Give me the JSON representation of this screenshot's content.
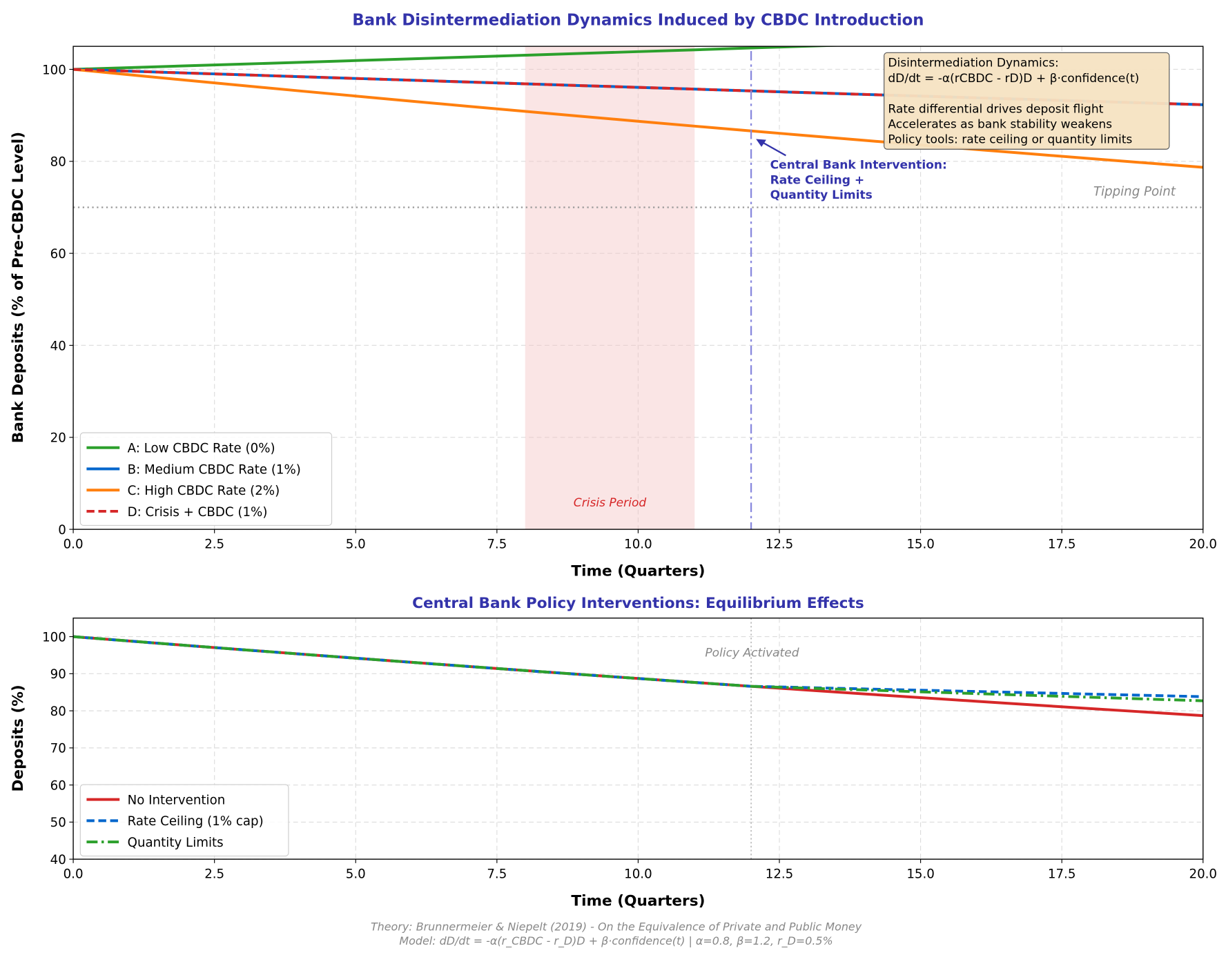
{
  "title": "Bank Disintermediation Dynamics Induced by CBDC Introduction",
  "colors": {
    "title": "#3333aa",
    "A": "#2ca02c",
    "B": "#0066cc",
    "C": "#ff7f0e",
    "D": "#d62728",
    "crisis": "#f5c6c6",
    "box": "#f5e3c2"
  },
  "chart_data": [
    {
      "type": "line",
      "xlabel": "Time (Quarters)",
      "ylabel": "Bank Deposits (% of Pre-CBDC Level)",
      "xlim": [
        0,
        20
      ],
      "ylim": [
        0,
        105
      ],
      "xticks": [
        "0.0",
        "2.5",
        "5.0",
        "7.5",
        "10.0",
        "12.5",
        "15.0",
        "17.5",
        "20.0"
      ],
      "yticks": [
        "0",
        "20",
        "40",
        "60",
        "80",
        "100"
      ],
      "grid": true,
      "legend_placement": "lower-left",
      "x": [
        0,
        1,
        2,
        3,
        4,
        5,
        6,
        7,
        8,
        9,
        10,
        11,
        12,
        13,
        14,
        15,
        16,
        17,
        18,
        19,
        20
      ],
      "series": [
        {
          "name": "A: Low CBDC Rate (0%)",
          "color": "#2ca02c",
          "style": "solid",
          "values": [
            100,
            100.38,
            100.76,
            101.14,
            101.52,
            101.91,
            102.29,
            102.68,
            103.07,
            103.46,
            103.85,
            104.24,
            104.64,
            105.04,
            105.43,
            105.83,
            106.23,
            106.64,
            107.04,
            107.45,
            107.85
          ]
        },
        {
          "name": "B: Medium CBDC Rate (1%)",
          "color": "#0066cc",
          "style": "solid",
          "values": [
            100,
            99.6,
            99.2,
            98.81,
            98.41,
            98.02,
            97.63,
            97.24,
            96.85,
            96.46,
            96.08,
            95.7,
            95.31,
            94.93,
            94.55,
            94.18,
            93.8,
            93.43,
            93.05,
            92.68,
            92.31
          ]
        },
        {
          "name": "C: High CBDC Rate (2%)",
          "color": "#ff7f0e",
          "style": "solid",
          "values": [
            100,
            98.81,
            97.63,
            96.47,
            95.32,
            94.19,
            93.06,
            91.96,
            90.86,
            89.78,
            88.71,
            87.65,
            86.61,
            85.58,
            84.56,
            83.55,
            82.56,
            81.58,
            80.61,
            79.65,
            78.7
          ]
        },
        {
          "name": "D: Crisis + CBDC (1%)",
          "color": "#d62728",
          "style": "dashed",
          "values": [
            100,
            99.6,
            99.2,
            98.81,
            98.41,
            98.02,
            97.63,
            97.24,
            96.85,
            96.46,
            96.08,
            95.7,
            95.31,
            94.93,
            94.55,
            94.18,
            93.8,
            93.43,
            93.05,
            92.68,
            92.31
          ]
        }
      ],
      "tipping_point": {
        "value": 70,
        "label": "Tipping Point"
      },
      "crisis_period": {
        "start": 8,
        "end": 11,
        "label": "Crisis Period"
      },
      "intervention": {
        "x": 12,
        "arrow_target_y": 85,
        "label_lines": [
          "Central Bank Intervention:",
          "Rate Ceiling +",
          "Quantity Limits"
        ]
      },
      "info_box": [
        "Disintermediation Dynamics:",
        "dD/dt = -α(rCBDC - rD)D + β·confidence(t)",
        "",
        "Rate differential drives deposit flight",
        "Accelerates as bank stability weakens",
        "Policy tools: rate ceiling or quantity limits"
      ]
    },
    {
      "type": "line",
      "title": "Central Bank Policy Interventions: Equilibrium Effects",
      "xlabel": "Time (Quarters)",
      "ylabel": "Deposits (%)",
      "xlim": [
        0,
        20
      ],
      "ylim": [
        40,
        105
      ],
      "xticks": [
        "0.0",
        "2.5",
        "5.0",
        "7.5",
        "10.0",
        "12.5",
        "15.0",
        "17.5",
        "20.0"
      ],
      "yticks": [
        "40",
        "50",
        "60",
        "70",
        "80",
        "90",
        "100"
      ],
      "grid": true,
      "legend_placement": "lower-left",
      "x": [
        0,
        1,
        2,
        3,
        4,
        5,
        6,
        7,
        8,
        9,
        10,
        11,
        12,
        13,
        14,
        15,
        16,
        17,
        18,
        19,
        20
      ],
      "series": [
        {
          "name": "No Intervention",
          "color": "#d62728",
          "style": "solid",
          "values": [
            100,
            98.81,
            97.63,
            96.47,
            95.32,
            94.19,
            93.06,
            91.96,
            90.86,
            89.78,
            88.71,
            87.65,
            86.61,
            85.58,
            84.56,
            83.55,
            82.56,
            81.58,
            80.61,
            79.65,
            78.7
          ]
        },
        {
          "name": "Rate Ceiling (1% cap)",
          "color": "#0066cc",
          "style": "dashed",
          "values": [
            100,
            98.81,
            97.63,
            96.47,
            95.32,
            94.19,
            93.06,
            91.96,
            90.86,
            89.78,
            88.71,
            87.65,
            86.61,
            86.26,
            85.9,
            85.55,
            85.2,
            84.86,
            84.51,
            84.16,
            83.82
          ]
        },
        {
          "name": "Quantity Limits",
          "color": "#2ca02c",
          "style": "dashdot",
          "values": [
            100,
            98.81,
            97.63,
            96.47,
            95.32,
            94.19,
            93.06,
            91.96,
            90.86,
            89.78,
            88.71,
            87.65,
            86.61,
            86.11,
            85.62,
            85.12,
            84.63,
            84.15,
            83.66,
            83.18,
            82.7
          ]
        }
      ],
      "policy_line": {
        "x": 12,
        "label": "Policy Activated"
      }
    }
  ],
  "footer": [
    "Theory: Brunnermeier & Niepelt (2019) - On the Equivalence of Private and Public Money",
    "Model: dD/dt = -α(r_CBDC - r_D)D + β·confidence(t) | α=0.8, β=1.2, r_D=0.5%"
  ]
}
